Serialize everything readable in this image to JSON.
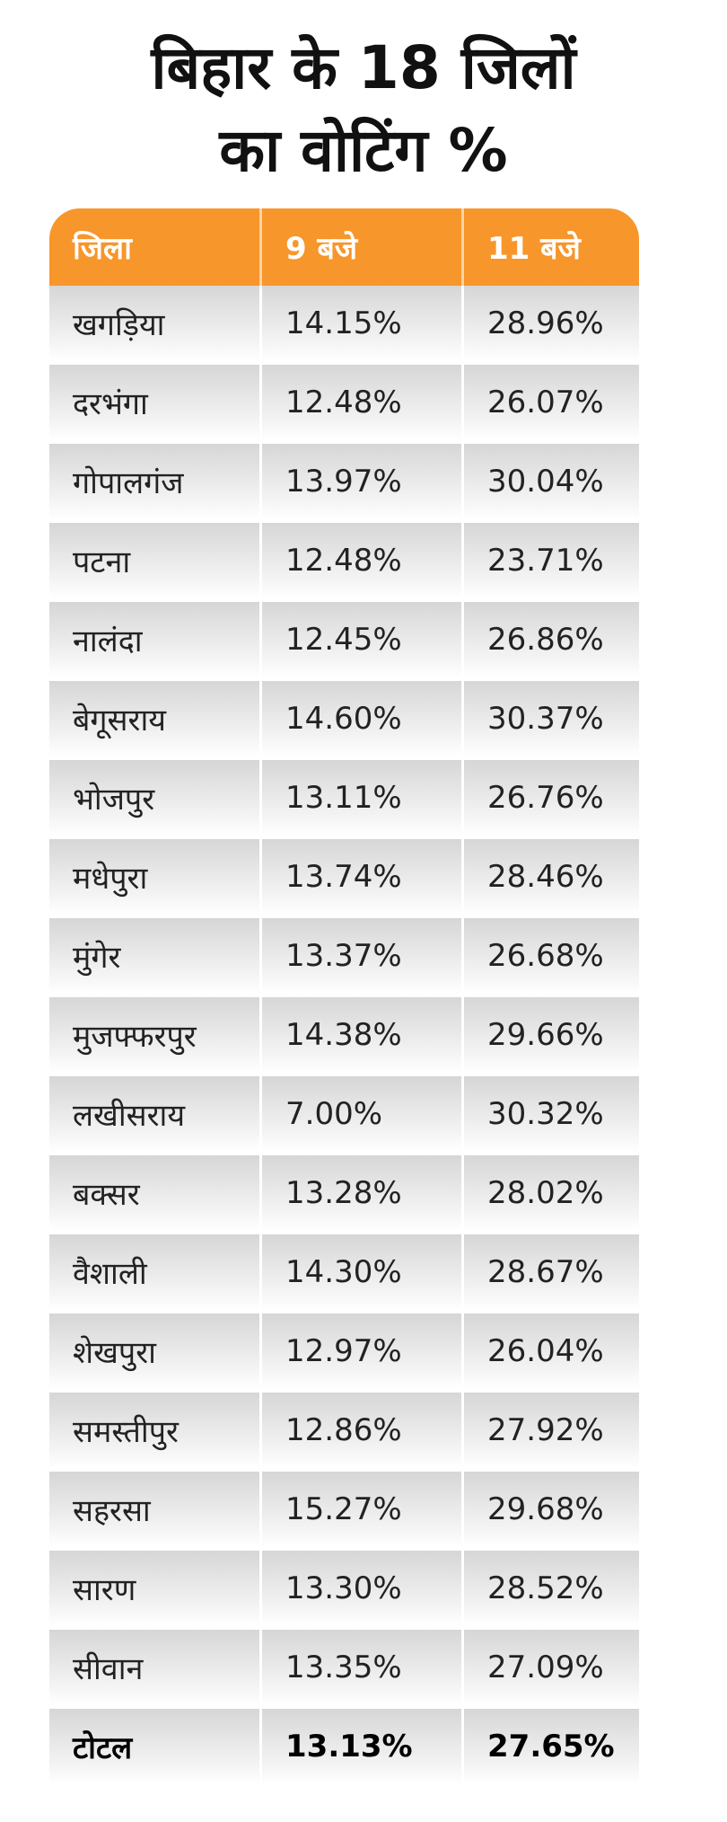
{
  "title": {
    "line1": "बिहार के 18 जिलों",
    "line2": "का वोटिंग %"
  },
  "colors": {
    "header": "#f7962b"
  },
  "table": {
    "headers": [
      "जिला",
      "9 बजे",
      "11 बजे"
    ],
    "rows": [
      [
        "खगड़िया",
        "14.15%",
        "28.96%"
      ],
      [
        "दरभंगा",
        "12.48%",
        "26.07%"
      ],
      [
        "गोपालगंज",
        "13.97%",
        "30.04%"
      ],
      [
        "पटना",
        "12.48%",
        "23.71%"
      ],
      [
        "नालंदा",
        "12.45%",
        "26.86%"
      ],
      [
        "बेगूसराय",
        "14.60%",
        "30.37%"
      ],
      [
        "भोजपुर",
        "13.11%",
        "26.76%"
      ],
      [
        "मधेपुरा",
        "13.74%",
        "28.46%"
      ],
      [
        "मुंगेर",
        "13.37%",
        "26.68%"
      ],
      [
        "मुजफ्फरपुर",
        "14.38%",
        "29.66%"
      ],
      [
        "लखीसराय",
        "7.00%",
        "30.32%"
      ],
      [
        "बक्सर",
        "13.28%",
        "28.02%"
      ],
      [
        "वैशाली",
        "14.30%",
        "28.67%"
      ],
      [
        "शेखपुरा",
        "12.97%",
        "26.04%"
      ],
      [
        "समस्तीपुर",
        "12.86%",
        "27.92%"
      ],
      [
        "सहरसा",
        "15.27%",
        "29.68%"
      ],
      [
        "सारण",
        "13.30%",
        "28.52%"
      ],
      [
        "सीवान",
        "13.35%",
        "27.09%"
      ]
    ],
    "total": [
      "टोटल",
      "13.13%",
      "27.65%"
    ]
  }
}
